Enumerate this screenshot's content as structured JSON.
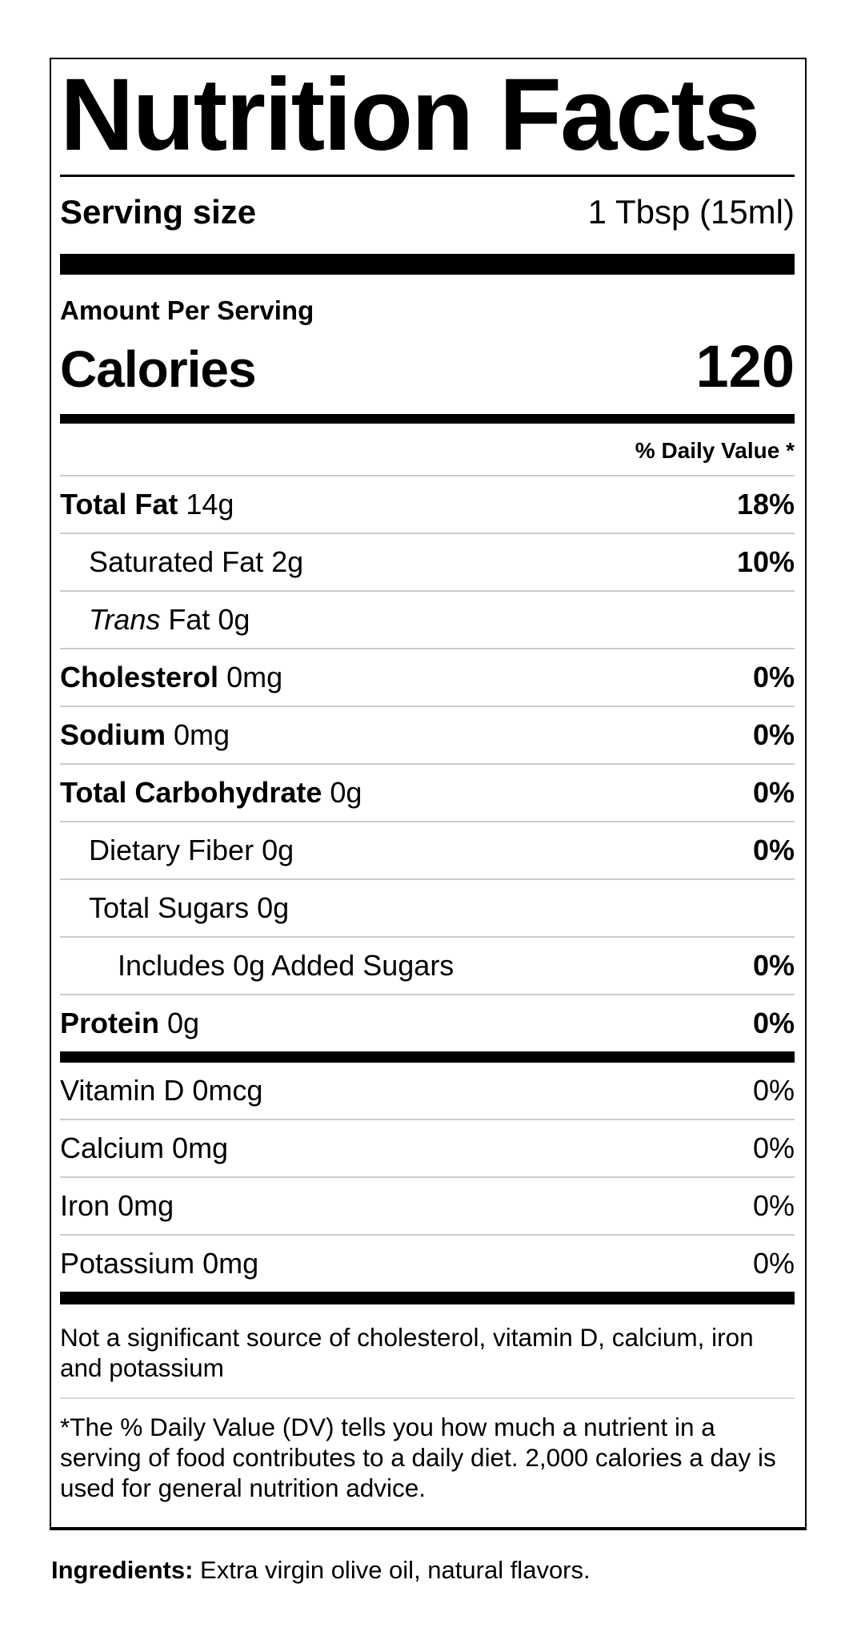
{
  "colors": {
    "text": "#000000",
    "background": "#ffffff",
    "thick_rule": "#000000",
    "row_separator": "#cccccc"
  },
  "label": {
    "title": "Nutrition Facts",
    "serving_size": {
      "label": "Serving size",
      "value": "1 Tbsp (15ml)"
    },
    "amount_per_serving": "Amount Per Serving",
    "calories": {
      "label": "Calories",
      "value": "120"
    },
    "daily_value_header": "% Daily Value *",
    "nutrients": [
      {
        "name": "Total Fat",
        "amount": "14g",
        "dv": "18%"
      },
      {
        "name": "Saturated Fat",
        "amount": "2g",
        "dv": "10%"
      },
      {
        "name_italic": "Trans",
        "name": "Fat",
        "amount": "0g",
        "dv": ""
      },
      {
        "name": "Cholesterol",
        "amount": "0mg",
        "dv": "0%"
      },
      {
        "name": "Sodium",
        "amount": "0mg",
        "dv": "0%"
      },
      {
        "name": "Total Carbohydrate",
        "amount": "0g",
        "dv": "0%"
      },
      {
        "name": "Dietary Fiber",
        "amount": "0g",
        "dv": "0%"
      },
      {
        "name": "Total Sugars",
        "amount": "0g",
        "dv": ""
      },
      {
        "name": "Includes 0g Added Sugars",
        "amount": "",
        "dv": "0%"
      },
      {
        "name": "Protein",
        "amount": "0g",
        "dv": "0%"
      }
    ],
    "micronutrients": [
      {
        "name": "Vitamin D",
        "amount": "0mcg",
        "dv": "0%"
      },
      {
        "name": "Calcium",
        "amount": "0mg",
        "dv": "0%"
      },
      {
        "name": "Iron",
        "amount": "0mg",
        "dv": "0%"
      },
      {
        "name": "Potassium",
        "amount": "0mg",
        "dv": "0%"
      }
    ],
    "footnotes": {
      "not_significant": "Not a significant source of cholesterol, vitamin D, calcium, iron and potassium",
      "daily_value_note": "*The % Daily Value (DV) tells you how much a nutrient in a serving of food contributes to a daily diet. 2,000 calories a day is used for general nutrition advice."
    }
  },
  "ingredients": {
    "label": "Ingredients:",
    "text": "Extra virgin olive oil, natural flavors."
  }
}
